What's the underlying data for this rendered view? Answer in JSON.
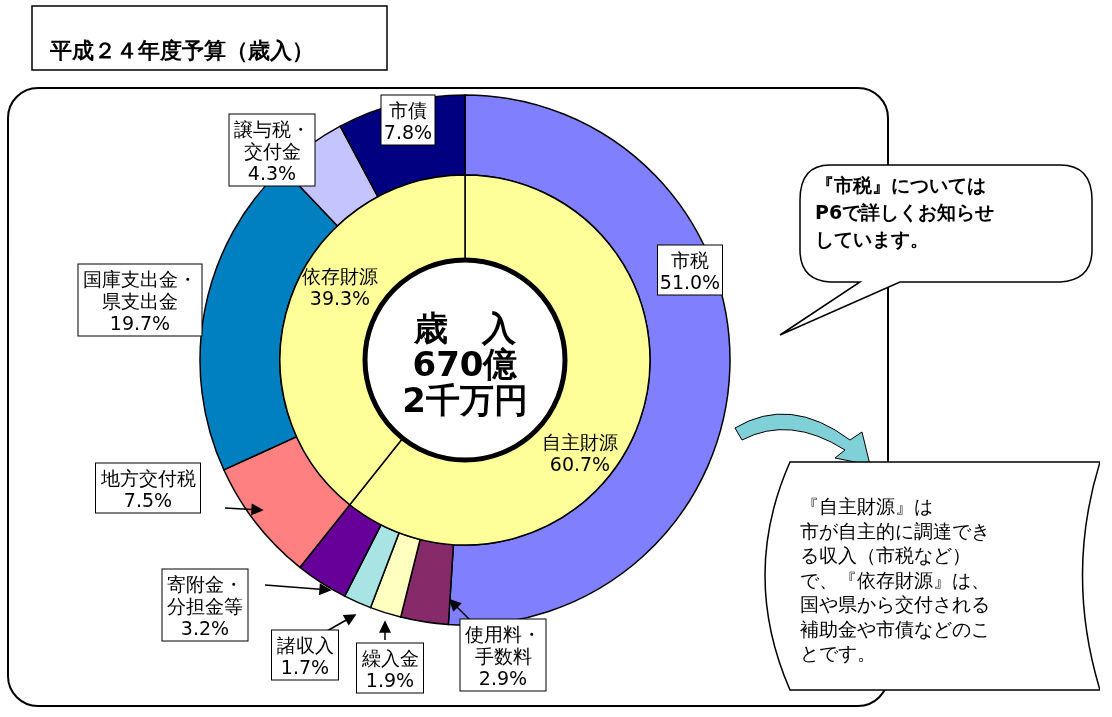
{
  "chart_data": [
    {
      "type": "donut",
      "title": "平成２４年度予算（歳入）",
      "categories": [
        "市税",
        "使用料・手数料",
        "繰入金",
        "諸収入",
        "寄附金・分担金等",
        "地方交付税",
        "国庫支出金・県支出金",
        "譲与税・交付金",
        "市債"
      ],
      "values": [
        51.0,
        2.9,
        1.9,
        1.7,
        3.2,
        7.5,
        19.7,
        4.3,
        7.8
      ],
      "value_labels": [
        "51.0%",
        "2.9%",
        "1.9%",
        "1.7%",
        "3.2%",
        "7.5%",
        "19.7%",
        "4.3%",
        "7.8%"
      ],
      "colors": [
        "#8080ff",
        "#862a6a",
        "#ffffc0",
        "#a8e4e4",
        "#660099",
        "#ff8080",
        "#0080c0",
        "#c4c4ff",
        "#000080"
      ],
      "annotations": [
        "『市税』についてはP6で詳しくお知らせしています。",
        "『自主財源』は市が自主的に調達できる収入（市税など）で、『依存財源』は、国や県から交付される補助金や市債などのことです。"
      ]
    },
    {
      "type": "donut",
      "categories": [
        "自主財源",
        "依存財源"
      ],
      "values": [
        60.7,
        39.3
      ],
      "value_labels": [
        "60.7%",
        "39.3%"
      ],
      "colors": [
        "#ffff99",
        "#ffff99"
      ],
      "annotations": [
        "歳　入670億2千万円"
      ]
    }
  ]
}
